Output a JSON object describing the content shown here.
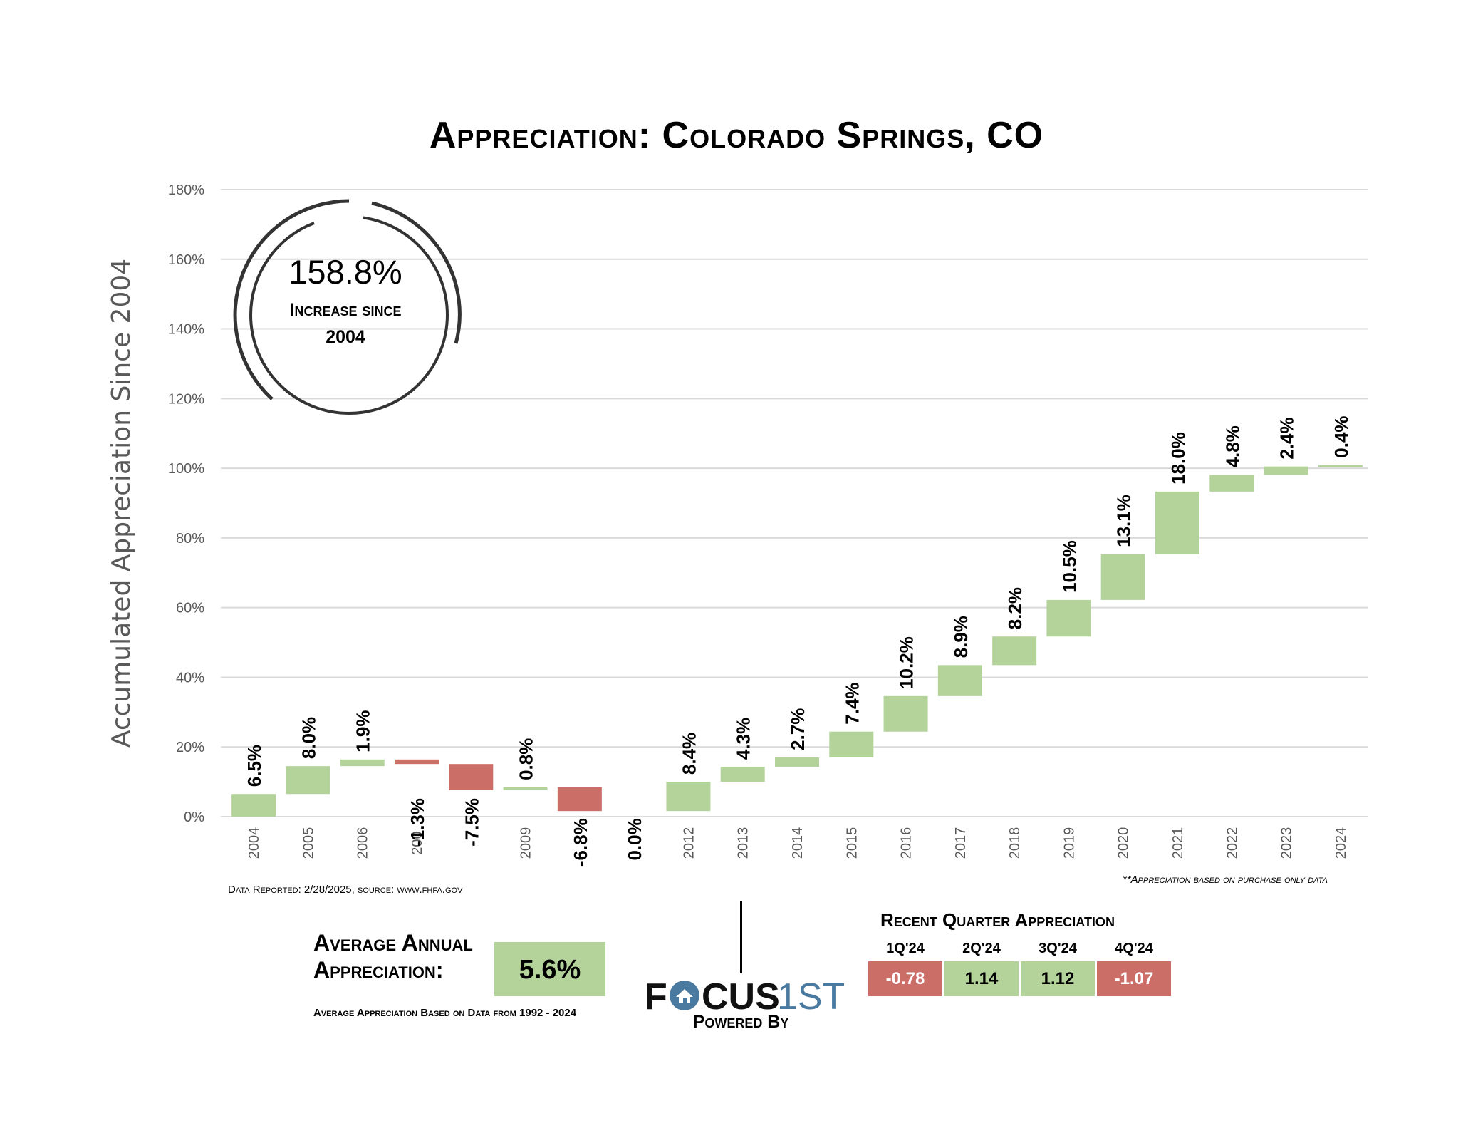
{
  "title": "Appreciation: Colorado Springs, CO",
  "total": {
    "value": "158.8%",
    "line1": "Increase since",
    "line2": "2004"
  },
  "notes": {
    "reported": "Data Reported: 2/28/2025, source: www.fhfa.gov",
    "purchase_only": "**Appreciation based on purchase only data"
  },
  "average": {
    "label": "Average Annual Appreciation:",
    "value": "5.6%",
    "sub": "Average Appreciation Based on Data from 1992 - 2024"
  },
  "branding": {
    "logo_left": "FOCUS",
    "logo_right": "1ST",
    "powered_by": "Powered By"
  },
  "recent": {
    "title": "Recent Quarter Appreciation",
    "quarters": [
      {
        "label": "1Q'24",
        "value": "-0.78"
      },
      {
        "label": "2Q'24",
        "value": "1.14"
      },
      {
        "label": "3Q'24",
        "value": "1.12"
      },
      {
        "label": "4Q'24",
        "value": "-1.07"
      }
    ]
  },
  "colors": {
    "positive": "#b3d39a",
    "negative": "#cc6e68",
    "grid": "#d9d9d9",
    "axis_text": "#595959",
    "ring": "#333333",
    "brand_blue": "#4a7aa0"
  },
  "chart_data": {
    "type": "bar",
    "subtype": "waterfall",
    "ylabel": "Accumulated Appreciation Since 2004",
    "ylim": [
      0,
      180
    ],
    "yticks": [
      "0%",
      "20%",
      "40%",
      "60%",
      "80%",
      "100%",
      "120%",
      "140%",
      "160%",
      "180%"
    ],
    "grid": true,
    "categories": [
      "2004",
      "2005",
      "2006",
      "200",
      "",
      "2009",
      "",
      "",
      "2012",
      "2013",
      "2014",
      "2015",
      "2016",
      "2017",
      "2018",
      "2019",
      "2020",
      "2021",
      "2022",
      "2023",
      "2024"
    ],
    "changes": [
      6.5,
      8.0,
      1.9,
      -1.3,
      -7.5,
      0.8,
      -6.8,
      0.0,
      8.4,
      4.3,
      2.7,
      7.4,
      10.2,
      8.9,
      8.2,
      10.5,
      13.1,
      18.0,
      4.8,
      2.4,
      0.4
    ],
    "labels": [
      "6.5%",
      "8.0%",
      "1.9%",
      "-1.3%",
      "-7.5%",
      "0.8%",
      "-6.8%",
      "0.0%",
      "8.4%",
      "4.3%",
      "2.7%",
      "7.4%",
      "10.2%",
      "8.9%",
      "8.2%",
      "10.5%",
      "13.1%",
      "18.0%",
      "4.8%",
      "2.4%",
      "0.4%"
    ]
  }
}
